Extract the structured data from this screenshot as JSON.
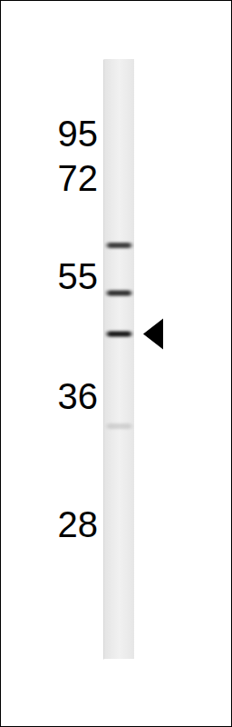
{
  "chart_data": {
    "type": "western_blot",
    "log": "y",
    "ylim": [
      152,
      21.5
    ],
    "yticks": [
      95,
      72,
      55,
      36,
      28
    ],
    "bands": [
      60,
      52,
      45,
      34
    ],
    "band_intensity": [
      0.75,
      0.8,
      0.9,
      0.12
    ],
    "marked_band": 45,
    "color": "#000000"
  }
}
